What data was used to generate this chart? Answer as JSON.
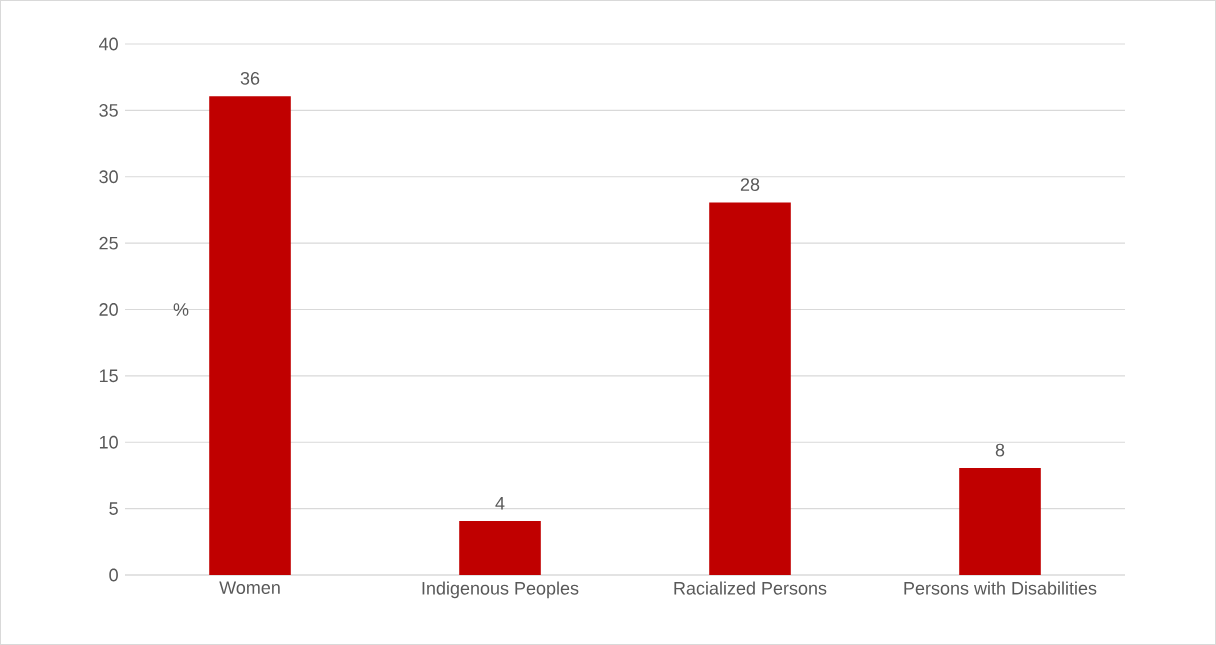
{
  "chart_data": {
    "type": "bar",
    "ylabel": "%",
    "categories": [
      "Women",
      "Indigenous Peoples",
      "Racialized Persons",
      "Persons with Disabilities"
    ],
    "values": [
      36,
      4,
      28,
      8
    ],
    "color": "#c00000",
    "ylim": [
      0,
      40
    ],
    "yticks": [
      0,
      5,
      10,
      15,
      20,
      25,
      30,
      35,
      40
    ],
    "grid": "y",
    "data_labels": true
  }
}
